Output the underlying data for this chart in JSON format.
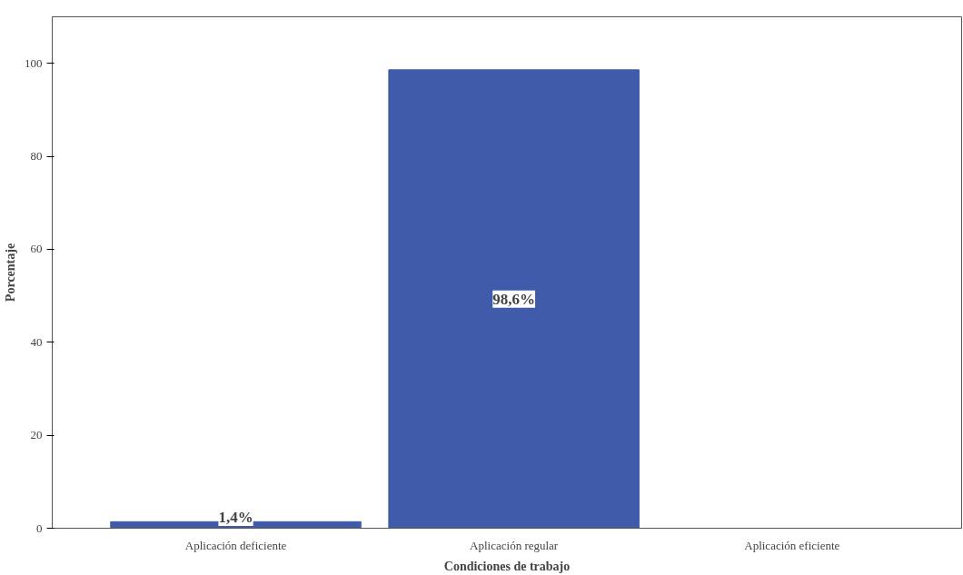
{
  "chart_data": {
    "type": "bar",
    "xlabel": "Condiciones de trabajo",
    "ylabel": "Porcentaje",
    "categories": [
      "Aplicación deficiente",
      "Aplicación regular",
      "Aplicación eficiente"
    ],
    "values": [
      1.4,
      98.6,
      null
    ],
    "value_labels": [
      "1,4%",
      "98,6%",
      null
    ],
    "color": "#3f5ba9",
    "ylim": [
      0,
      110
    ],
    "yticks": [
      0,
      20,
      40,
      60,
      80,
      100
    ],
    "grid": false
  }
}
